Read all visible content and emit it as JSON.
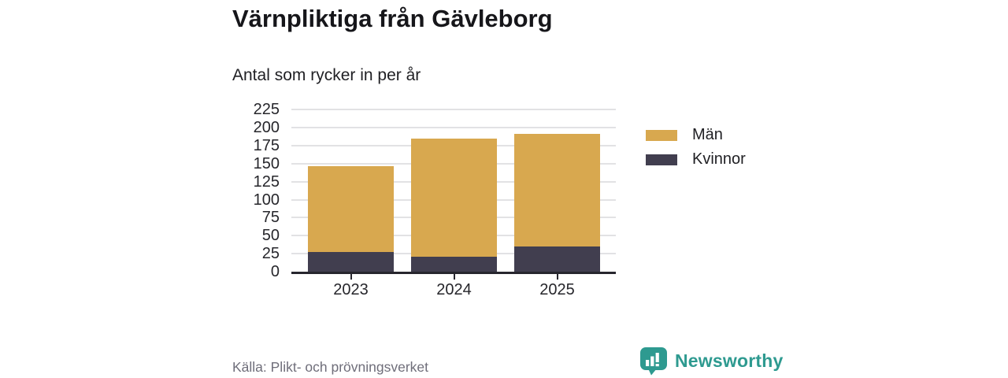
{
  "title": "Värnpliktiga från Gävleborg",
  "subtitle": "Antal som rycker in per år",
  "source": "Källa: Plikt- och prövningsverket",
  "brand": {
    "name": "Newsworthy",
    "icon": "bar-chart-speech-bubble-icon",
    "color": "#2e9a90"
  },
  "legend": [
    {
      "label": "Män",
      "color": "#d8a84f"
    },
    {
      "label": "Kvinnor",
      "color": "#413e4f"
    }
  ],
  "chart_data": {
    "type": "bar",
    "stacked": true,
    "title": "Värnpliktiga från Gävleborg",
    "subtitle": "Antal som rycker in per år",
    "categories": [
      "2023",
      "2024",
      "2025"
    ],
    "series": [
      {
        "name": "Kvinnor",
        "color": "#413e4f",
        "values": [
          27,
          21,
          35
        ]
      },
      {
        "name": "Män",
        "color": "#d8a84f",
        "values": [
          120,
          164,
          156
        ]
      }
    ],
    "totals": [
      147,
      185,
      191
    ],
    "ylim": [
      0,
      225
    ],
    "yticks": [
      0,
      25,
      50,
      75,
      100,
      125,
      150,
      175,
      200,
      225
    ],
    "grid": true,
    "gridline_color": "#e2e2e4",
    "axis_color": "#27262e",
    "legend_position": "right",
    "source": "Källa: Plikt- och prövningsverket"
  }
}
